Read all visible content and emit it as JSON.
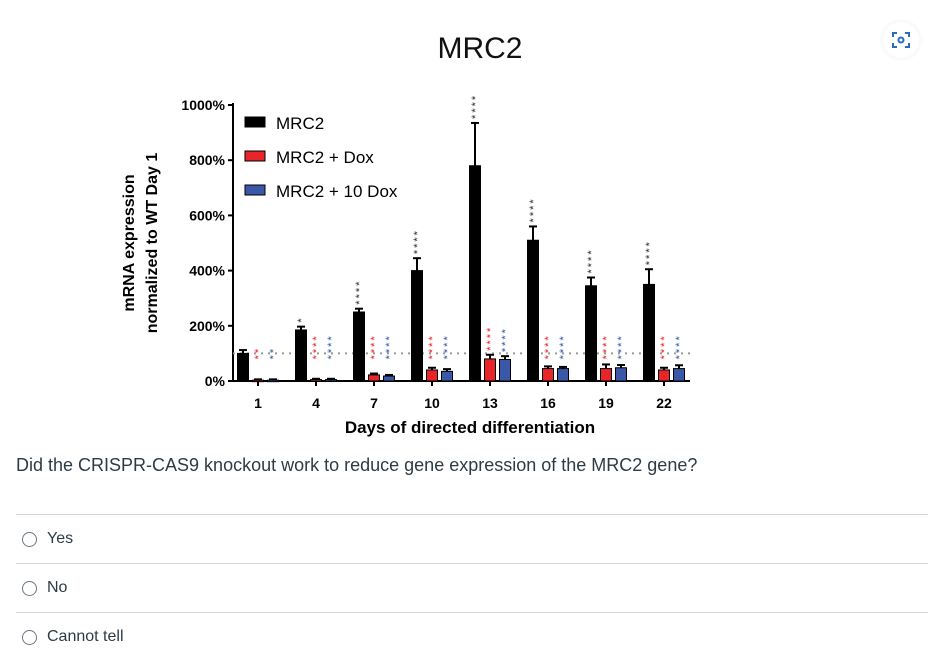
{
  "question": "Did the CRISPR-CAS9 knockout work to reduce gene expression of the MRC2 gene?",
  "options": [
    "Yes",
    "No",
    "Cannot tell"
  ],
  "icons": {
    "image_tool": "camera-focus-icon"
  },
  "chart_data": {
    "type": "bar",
    "title": "MRC2",
    "xlabel": "Days of directed differentiation",
    "ylabel": [
      "mRNA expression",
      "normalized to WT Day 1"
    ],
    "yticks": [
      "0%",
      "200%",
      "400%",
      "600%",
      "800%",
      "1000%"
    ],
    "ylim": [
      0,
      1000
    ],
    "reference_line": 100,
    "legend_position": "top-left",
    "categories": [
      "1",
      "4",
      "7",
      "10",
      "13",
      "16",
      "19",
      "22"
    ],
    "series": [
      {
        "name": "MRC2",
        "color": "#000000",
        "values": [
          100,
          185,
          250,
          400,
          780,
          510,
          345,
          350
        ],
        "errors": [
          12,
          12,
          12,
          45,
          155,
          50,
          30,
          55
        ],
        "significance": [
          "",
          "*",
          "****",
          "****",
          "****",
          "****",
          "****",
          "****"
        ]
      },
      {
        "name": "MRC2 + Dox",
        "color": "#e8262a",
        "values": [
          3,
          5,
          22,
          40,
          80,
          45,
          45,
          40
        ],
        "errors": [
          3,
          3,
          5,
          8,
          15,
          8,
          15,
          8
        ],
        "significance": [
          "**",
          "****",
          "****",
          "****",
          "****",
          "****",
          "****",
          "****"
        ]
      },
      {
        "name": "MRC2 + 10 Dox",
        "color": "#3a57a8",
        "values": [
          3,
          5,
          18,
          35,
          78,
          45,
          48,
          45
        ],
        "errors": [
          3,
          3,
          4,
          8,
          12,
          6,
          10,
          12
        ],
        "significance": [
          "**",
          "****",
          "****",
          "****",
          "****",
          "****",
          "****",
          "****"
        ]
      }
    ]
  }
}
